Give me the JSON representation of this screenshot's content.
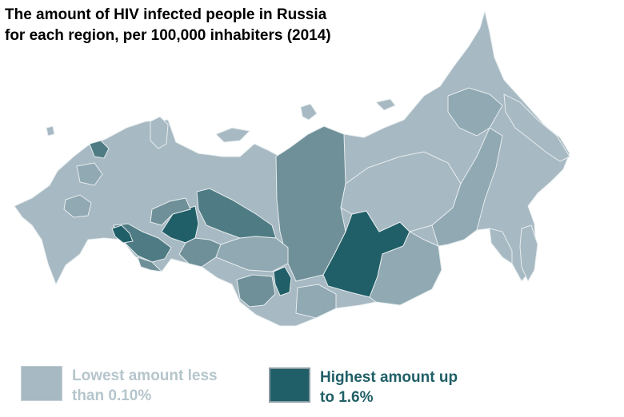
{
  "title": {
    "line1": "The amount of HIV infected people in Russia",
    "line2": "for each region, per 100,000 inhabiters (2014)"
  },
  "colors": {
    "low": "#a7b9c2",
    "mid_light": "#90a9b2",
    "mid": "#6f9098",
    "mid_dark": "#4f7c84",
    "high": "#205f67"
  },
  "legend": {
    "low": {
      "line1": "Lowest amount less",
      "line2": "than 0.10%"
    },
    "high": {
      "line1": "Highest amount up",
      "line2": "to 1.6%"
    }
  }
}
